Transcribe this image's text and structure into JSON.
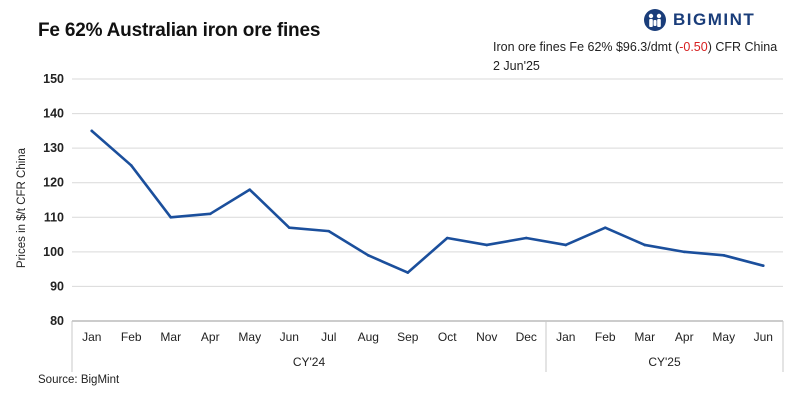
{
  "title": "Fe 62% Australian iron ore fines",
  "brand": {
    "name": "BIGMINT",
    "color": "#1a3d7a"
  },
  "annotation": {
    "prefix": "Iron ore fines Fe 62% $96.3/dmt (",
    "change": "-0.50",
    "suffix": ") CFR China  2 Jun'25",
    "change_color": "#d62020"
  },
  "source": "Source: BigMint",
  "chart_data": {
    "type": "line",
    "title": "Fe 62% Australian iron ore fines",
    "ylabel": "Prices in $/t CFR China",
    "xlabel": "",
    "ylim": [
      80,
      150
    ],
    "yticks": [
      80,
      90,
      100,
      110,
      120,
      130,
      140,
      150
    ],
    "grid": true,
    "categories": [
      "Jan",
      "Feb",
      "Mar",
      "Apr",
      "May",
      "Jun",
      "Jul",
      "Aug",
      "Sep",
      "Oct",
      "Nov",
      "Dec",
      "Jan",
      "Feb",
      "Mar",
      "Apr",
      "May",
      "Jun"
    ],
    "groups": [
      {
        "label": "CY'24",
        "count": 12
      },
      {
        "label": "CY'25",
        "count": 6
      }
    ],
    "series": [
      {
        "color": "#1b4f9c",
        "values": [
          135,
          125,
          110,
          111,
          118,
          107,
          106,
          99,
          94,
          104,
          102,
          104,
          102,
          107,
          102,
          100,
          99,
          96
        ]
      }
    ]
  }
}
